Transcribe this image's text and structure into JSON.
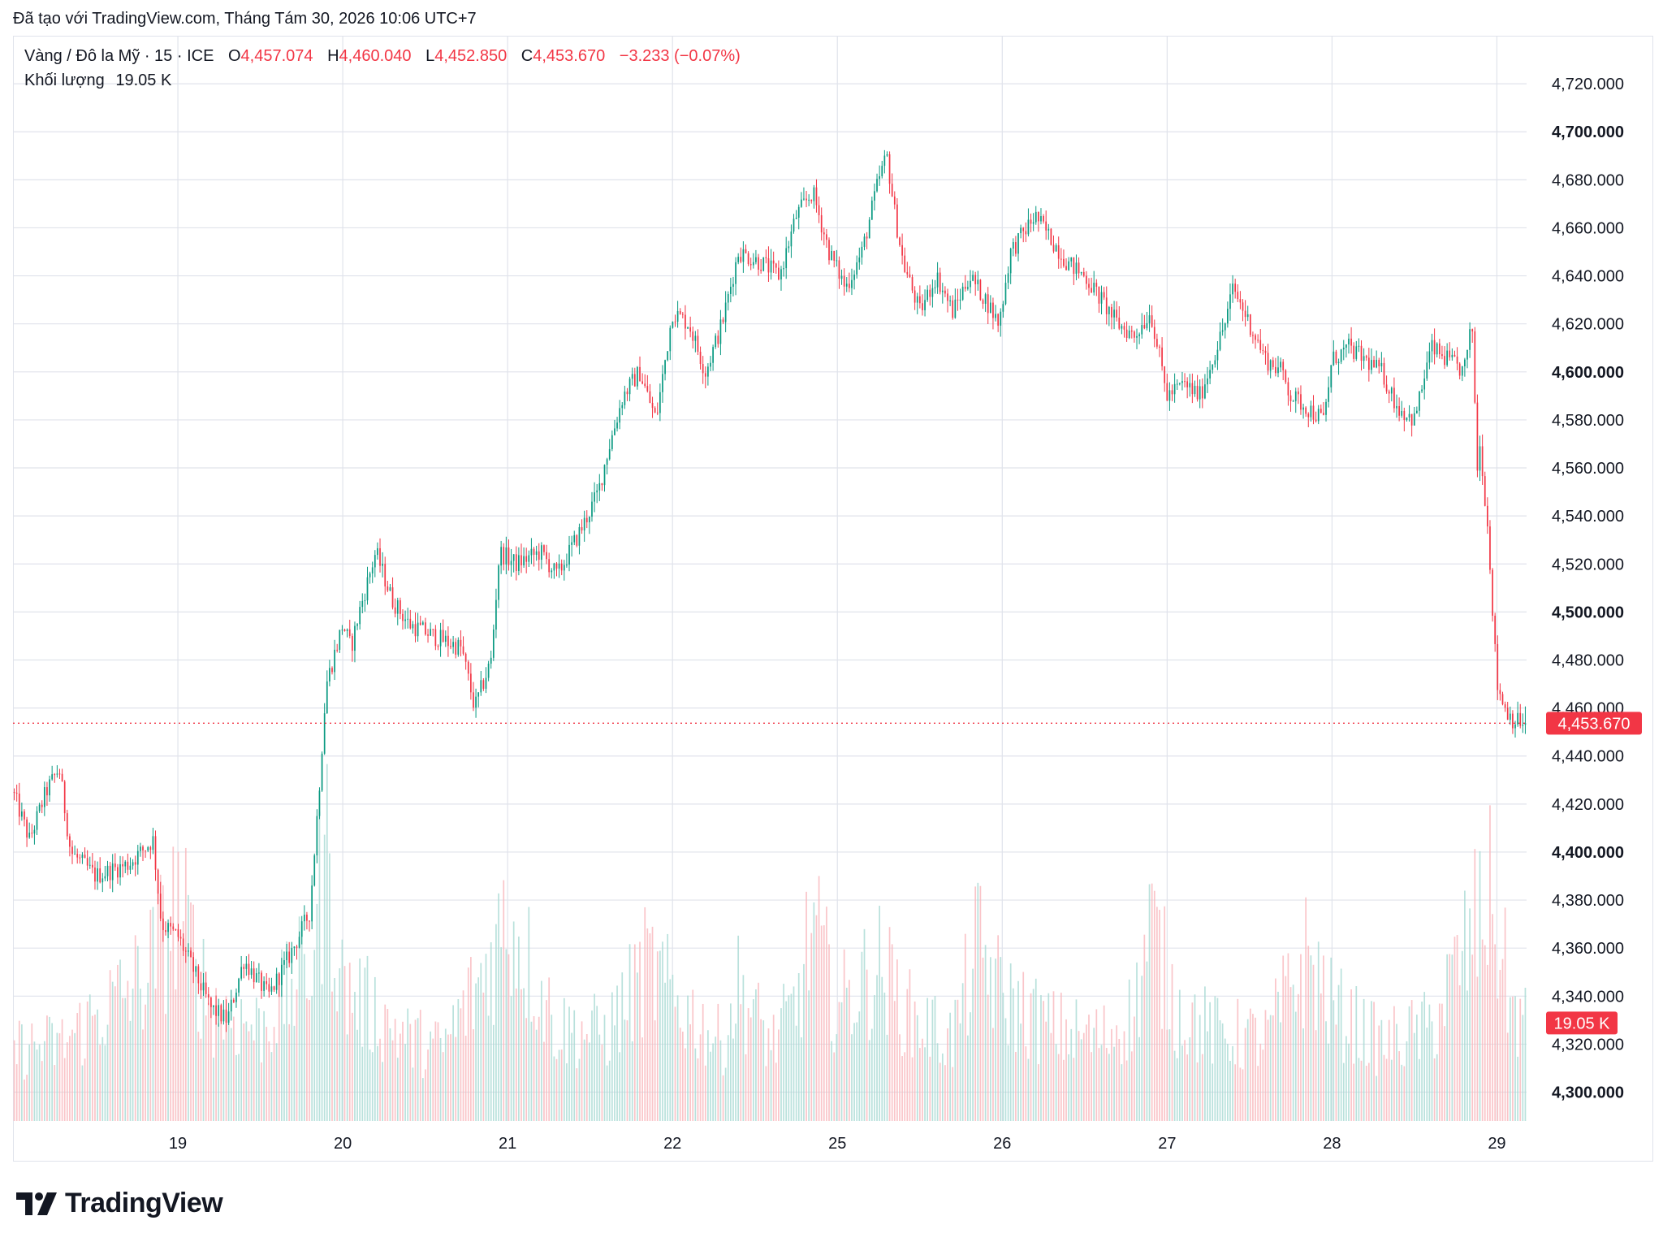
{
  "credit": "Đã tạo với TradingView.com, Tháng Tám 30, 2026 10:06 UTC+7",
  "legend": {
    "symbol": "Vàng / Đô la Mỹ · 15 · ICE",
    "open_label": "O",
    "open": "4,457.074",
    "high_label": "H",
    "high": "4,460.040",
    "low_label": "L",
    "low": "4,452.850",
    "close_label": "C",
    "close": "4,453.670",
    "change": "−3.233 (−0.07%)",
    "volume_label": "Khối lượng",
    "volume": "19.05 K"
  },
  "brand": "TradingView",
  "colors": {
    "up": "#089981",
    "down": "#f23645",
    "up_vol": "#a8dad3",
    "down_vol": "#f9b7bc",
    "grid": "#e0e3eb",
    "text": "#131722"
  },
  "chart_data": {
    "type": "candlestick",
    "xlabel": "",
    "ylabel": "",
    "ylim": [
      4288,
      4740
    ],
    "y_ticks": [
      4300,
      4320,
      4340,
      4360,
      4380,
      4400,
      4420,
      4440,
      4460,
      4480,
      4500,
      4520,
      4540,
      4560,
      4580,
      4600,
      4620,
      4640,
      4660,
      4680,
      4700,
      4720
    ],
    "y_tick_labels": [
      "4,300.000",
      "4,320.000",
      "4,340.000",
      "4,360.000",
      "4,380.000",
      "4,400.000",
      "4,420.000",
      "4,440.000",
      "4,460.000",
      "4,480.000",
      "4,500.000",
      "4,520.000",
      "4,540.000",
      "4,560.000",
      "4,580.000",
      "4,600.000",
      "4,620.000",
      "4,640.000",
      "4,660.000",
      "4,680.000",
      "4,700.000",
      "4,720.000"
    ],
    "bold_ticks": [
      "4,300.000",
      "4,400.000",
      "4,500.000",
      "4,600.000",
      "4,700.000"
    ],
    "x_tick_labels": [
      "19",
      "20",
      "21",
      "22",
      "25",
      "26",
      "27",
      "28",
      "29"
    ],
    "day_index_range": [
      0,
      9.18
    ],
    "x_tick_positions": [
      1,
      2,
      3,
      4,
      5,
      6,
      7,
      8,
      9
    ],
    "price_path": [
      [
        0.0,
        4425
      ],
      [
        0.1,
        4405
      ],
      [
        0.2,
        4425
      ],
      [
        0.28,
        4435
      ],
      [
        0.35,
        4400
      ],
      [
        0.5,
        4390
      ],
      [
        0.7,
        4395
      ],
      [
        0.85,
        4405
      ],
      [
        0.9,
        4370
      ],
      [
        1.0,
        4365
      ],
      [
        1.1,
        4350
      ],
      [
        1.2,
        4335
      ],
      [
        1.3,
        4330
      ],
      [
        1.4,
        4355
      ],
      [
        1.5,
        4345
      ],
      [
        1.55,
        4340
      ],
      [
        1.7,
        4360
      ],
      [
        1.8,
        4375
      ],
      [
        1.85,
        4420
      ],
      [
        1.9,
        4470
      ],
      [
        2.0,
        4495
      ],
      [
        2.05,
        4485
      ],
      [
        2.1,
        4500
      ],
      [
        2.2,
        4525
      ],
      [
        2.3,
        4505
      ],
      [
        2.4,
        4495
      ],
      [
        2.55,
        4490
      ],
      [
        2.72,
        4485
      ],
      [
        2.8,
        4460
      ],
      [
        2.9,
        4480
      ],
      [
        2.95,
        4525
      ],
      [
        3.05,
        4520
      ],
      [
        3.2,
        4525
      ],
      [
        3.3,
        4515
      ],
      [
        3.45,
        4535
      ],
      [
        3.55,
        4550
      ],
      [
        3.6,
        4565
      ],
      [
        3.7,
        4590
      ],
      [
        3.8,
        4600
      ],
      [
        3.9,
        4580
      ],
      [
        4.0,
        4625
      ],
      [
        4.1,
        4620
      ],
      [
        4.2,
        4600
      ],
      [
        4.3,
        4620
      ],
      [
        4.4,
        4650
      ],
      [
        4.55,
        4645
      ],
      [
        4.65,
        4640
      ],
      [
        4.75,
        4665
      ],
      [
        4.85,
        4675
      ],
      [
        4.95,
        4650
      ],
      [
        5.05,
        4635
      ],
      [
        5.15,
        4650
      ],
      [
        5.25,
        4680
      ],
      [
        5.3,
        4690
      ],
      [
        5.35,
        4665
      ],
      [
        5.4,
        4645
      ],
      [
        5.5,
        4625
      ],
      [
        5.6,
        4640
      ],
      [
        5.7,
        4625
      ],
      [
        5.8,
        4640
      ],
      [
        5.9,
        4630
      ],
      [
        5.98,
        4620
      ],
      [
        6.05,
        4650
      ],
      [
        6.15,
        4660
      ],
      [
        6.2,
        4665
      ],
      [
        6.3,
        4655
      ],
      [
        6.4,
        4645
      ],
      [
        6.5,
        4640
      ],
      [
        6.6,
        4630
      ],
      [
        6.7,
        4620
      ],
      [
        6.8,
        4615
      ],
      [
        6.9,
        4625
      ],
      [
        7.0,
        4590
      ],
      [
        7.1,
        4595
      ],
      [
        7.2,
        4590
      ],
      [
        7.3,
        4610
      ],
      [
        7.35,
        4620
      ],
      [
        7.4,
        4635
      ],
      [
        7.5,
        4620
      ],
      [
        7.6,
        4605
      ],
      [
        7.7,
        4600
      ],
      [
        7.75,
        4590
      ],
      [
        7.85,
        4585
      ],
      [
        7.95,
        4580
      ],
      [
        8.0,
        4605
      ],
      [
        8.1,
        4610
      ],
      [
        8.2,
        4605
      ],
      [
        8.3,
        4600
      ],
      [
        8.4,
        4585
      ],
      [
        8.5,
        4580
      ],
      [
        8.55,
        4595
      ],
      [
        8.6,
        4610
      ],
      [
        8.7,
        4605
      ],
      [
        8.8,
        4600
      ],
      [
        8.85,
        4620
      ],
      [
        8.88,
        4560
      ],
      [
        8.9,
        4570
      ],
      [
        8.95,
        4530
      ],
      [
        9.0,
        4470
      ],
      [
        9.05,
        4460
      ],
      [
        9.1,
        4455
      ],
      [
        9.15,
        4454
      ]
    ],
    "volume_range": [
      0,
      60000
    ],
    "volume_profile": [
      [
        0.0,
        14000
      ],
      [
        0.3,
        15000
      ],
      [
        0.8,
        28000
      ],
      [
        1.0,
        42000
      ],
      [
        1.2,
        22000
      ],
      [
        1.5,
        18000
      ],
      [
        1.8,
        30000
      ],
      [
        1.9,
        52000
      ],
      [
        2.0,
        26000
      ],
      [
        2.4,
        16000
      ],
      [
        2.6,
        14000
      ],
      [
        2.85,
        28000
      ],
      [
        3.0,
        40000
      ],
      [
        3.3,
        18000
      ],
      [
        3.6,
        17000
      ],
      [
        3.85,
        30000
      ],
      [
        4.0,
        24000
      ],
      [
        4.3,
        15000
      ],
      [
        4.4,
        26000
      ],
      [
        4.6,
        15000
      ],
      [
        4.75,
        22000
      ],
      [
        4.85,
        38000
      ],
      [
        5.0,
        22000
      ],
      [
        5.25,
        30000
      ],
      [
        5.45,
        20000
      ],
      [
        5.7,
        16000
      ],
      [
        5.85,
        34000
      ],
      [
        6.0,
        24000
      ],
      [
        6.3,
        18000
      ],
      [
        6.6,
        16000
      ],
      [
        6.8,
        21000
      ],
      [
        6.9,
        38000
      ],
      [
        7.05,
        22000
      ],
      [
        7.3,
        17000
      ],
      [
        7.6,
        16000
      ],
      [
        7.85,
        32000
      ],
      [
        8.0,
        22000
      ],
      [
        8.3,
        15000
      ],
      [
        8.6,
        18000
      ],
      [
        8.85,
        36000
      ],
      [
        8.95,
        44000
      ],
      [
        9.1,
        21000
      ],
      [
        9.18,
        19050
      ]
    ]
  }
}
